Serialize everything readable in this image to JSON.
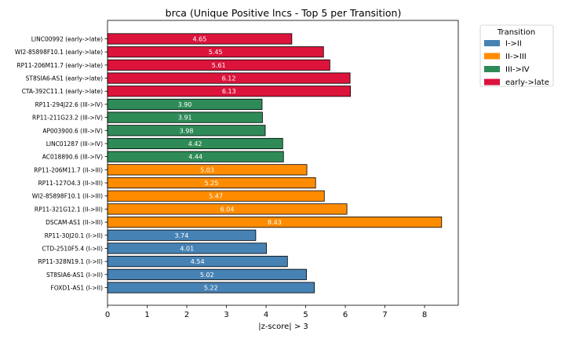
{
  "chart_data": {
    "type": "bar",
    "orientation": "horizontal",
    "title": "brca (Unique Positive lncs - Top 5 per Transition)",
    "xlabel": "|z-score| > 3",
    "ylabel": "",
    "xlim": [
      0,
      8.85
    ],
    "xticks": [
      "0",
      "1",
      "2",
      "3",
      "4",
      "5",
      "6",
      "7",
      "8"
    ],
    "grid": false,
    "legend": {
      "title": "Transition",
      "placement": "outside-top-right",
      "entries": [
        {
          "name": "I->II",
          "color": "#4682b4"
        },
        {
          "name": "II->III",
          "color": "#ff8c00"
        },
        {
          "name": "III->IV",
          "color": "#2e8b57"
        },
        {
          "name": "early->late",
          "color": "#dc143c"
        }
      ]
    },
    "bars": [
      {
        "label": "LINC00992 (early->late)",
        "value": 4.65,
        "value_label": "4.65",
        "series": "early->late"
      },
      {
        "label": "WI2-85898F10.1 (early->late)",
        "value": 5.45,
        "value_label": "5.45",
        "series": "early->late"
      },
      {
        "label": "RP11-206M11.7 (early->late)",
        "value": 5.61,
        "value_label": "5.61",
        "series": "early->late"
      },
      {
        "label": "ST8SIA6-AS1 (early->late)",
        "value": 6.12,
        "value_label": "6.12",
        "series": "early->late"
      },
      {
        "label": "CTA-392C11.1 (early->late)",
        "value": 6.13,
        "value_label": "6.13",
        "series": "early->late"
      },
      {
        "label": "RP11-294J22.6 (III->IV)",
        "value": 3.9,
        "value_label": "3.90",
        "series": "III->IV"
      },
      {
        "label": "RP11-211G23.2 (III->IV)",
        "value": 3.91,
        "value_label": "3.91",
        "series": "III->IV"
      },
      {
        "label": "AP003900.6 (III->IV)",
        "value": 3.98,
        "value_label": "3.98",
        "series": "III->IV"
      },
      {
        "label": "LINC01287 (III->IV)",
        "value": 4.42,
        "value_label": "4.42",
        "series": "III->IV"
      },
      {
        "label": "AC018890.6 (III->IV)",
        "value": 4.44,
        "value_label": "4.44",
        "series": "III->IV"
      },
      {
        "label": "RP11-206M11.7 (II->III)",
        "value": 5.03,
        "value_label": "5.03",
        "series": "II->III"
      },
      {
        "label": "RP11-127O4.3 (II->III)",
        "value": 5.25,
        "value_label": "5.25",
        "series": "II->III"
      },
      {
        "label": "WI2-85898F10.1 (II->III)",
        "value": 5.47,
        "value_label": "5.47",
        "series": "II->III"
      },
      {
        "label": "RP11-321G12.1 (II->III)",
        "value": 6.04,
        "value_label": "6.04",
        "series": "II->III"
      },
      {
        "label": "DSCAM-AS1 (II->III)",
        "value": 8.43,
        "value_label": "8.43",
        "series": "II->III"
      },
      {
        "label": "RP11-30J20.1 (I->II)",
        "value": 3.74,
        "value_label": "3.74",
        "series": "I->II"
      },
      {
        "label": "CTD-2510F5.4 (I->II)",
        "value": 4.01,
        "value_label": "4.01",
        "series": "I->II"
      },
      {
        "label": "RP11-328N19.1 (I->II)",
        "value": 4.54,
        "value_label": "4.54",
        "series": "I->II"
      },
      {
        "label": "ST8SIA6-AS1 (I->II)",
        "value": 5.02,
        "value_label": "5.02",
        "series": "I->II"
      },
      {
        "label": "FOXD1-AS1 (I->II)",
        "value": 5.22,
        "value_label": "5.22",
        "series": "I->II"
      }
    ]
  }
}
